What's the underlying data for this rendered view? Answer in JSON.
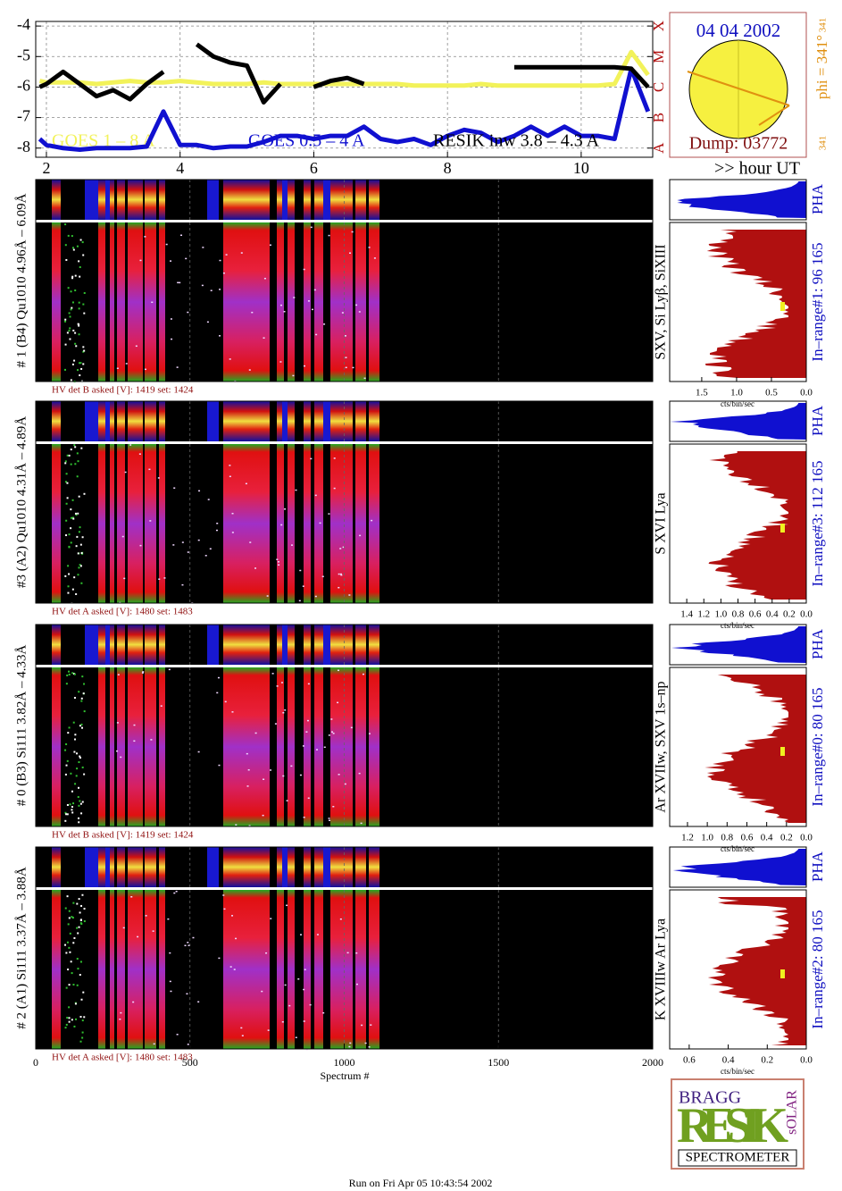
{
  "chart_data": [
    {
      "type": "line",
      "xlim": [
        1.84,
        11.07
      ],
      "xticks": [
        2,
        4,
        6,
        8,
        10
      ],
      "ylim": [
        -8.3,
        -3.85
      ],
      "yticks": [
        -4,
        -5,
        -6,
        -7,
        -8
      ],
      "y2lim": [
        -8.3,
        -3.85
      ],
      "y2ticks": [
        {
          "value": -8,
          "label": "A"
        },
        {
          "value": -7,
          "label": "B"
        },
        {
          "value": -6,
          "label": "C"
        },
        {
          "value": -5,
          "label": "M"
        },
        {
          "value": -4,
          "label": "X"
        }
      ],
      "grid": true,
      "xlabel": ">> hour UT",
      "x": [
        1.9,
        2.0,
        2.25,
        2.5,
        2.75,
        3.0,
        3.25,
        3.5,
        3.75,
        4.0,
        4.25,
        4.5,
        4.75,
        5.0,
        5.25,
        5.5,
        5.75,
        6.0,
        6.25,
        6.5,
        6.75,
        7.0,
        7.25,
        7.5,
        7.75,
        8.0,
        8.25,
        8.5,
        8.75,
        9.0,
        9.25,
        9.5,
        9.75,
        10.0,
        10.25,
        10.5,
        10.75,
        11.0
      ],
      "series": [
        {
          "name": "GOES 1 – 8 A",
          "color": "#f2f25a",
          "values": [
            -5.8,
            -5.85,
            -5.85,
            -5.85,
            -5.9,
            -5.85,
            -5.8,
            -5.85,
            -5.85,
            -5.8,
            -5.85,
            -5.9,
            -5.9,
            -5.9,
            -5.85,
            -5.9,
            -5.9,
            -5.9,
            -5.9,
            -5.9,
            -5.9,
            -5.9,
            -5.9,
            -5.95,
            -5.95,
            -5.95,
            -5.95,
            -5.9,
            -5.95,
            -5.95,
            -5.95,
            -5.95,
            -5.95,
            -5.95,
            -5.95,
            -5.9,
            -4.85,
            -5.6
          ]
        },
        {
          "name": "GOES 0.5 – 4 A",
          "color": "#1010d0",
          "values": [
            -7.7,
            -7.9,
            -8.0,
            -8.05,
            -8.0,
            -8.0,
            -8.0,
            -7.95,
            -6.8,
            -7.9,
            -7.9,
            -8.0,
            -7.95,
            -7.95,
            -7.8,
            -7.6,
            -7.6,
            -7.7,
            -7.6,
            -7.6,
            -7.3,
            -7.7,
            -7.8,
            -7.7,
            -7.9,
            -7.6,
            -7.4,
            -7.5,
            -7.8,
            -7.6,
            -7.3,
            -7.6,
            -7.3,
            -7.6,
            -7.6,
            -7.7,
            -5.4,
            -6.8
          ]
        },
        {
          "name": "RESIK inw 3.8 – 4.3 A",
          "color": "#000000",
          "values": [
            -6.0,
            -5.9,
            -5.5,
            -5.9,
            -6.3,
            -6.1,
            -6.4,
            -5.9,
            -5.5,
            null,
            -4.6,
            -5.0,
            -5.2,
            -5.3,
            -6.5,
            -5.9,
            null,
            -6.0,
            -5.8,
            -5.7,
            -5.9,
            null,
            null,
            null,
            null,
            null,
            null,
            null,
            null,
            -5.35,
            -5.35,
            -5.35,
            -5.35,
            -5.35,
            -5.35,
            -5.35,
            -5.4,
            -6.0
          ]
        }
      ]
    }
  ],
  "header": {
    "date": "04 04 2002",
    "dump": "Dump: 03772",
    "phi": "phi = 341°",
    "phi_top": "341",
    "phi_bottom": "341"
  },
  "spectrum_axis": {
    "xlim": [
      0,
      2000
    ],
    "xticks": [
      0,
      500,
      1000,
      1500,
      2000
    ],
    "xlabel": "Spectrum #"
  },
  "detectors": [
    {
      "label": "# 1 (B4) Qu1010 4.96Å – 6.09Å",
      "hv": "HV det B asked [V]:  1419 set:  1424",
      "lines": "SXV, Si Lyβ, SiXIII",
      "in_range": "In–range#1:   96 165",
      "pha": "PHA",
      "pha_xlim": [
        1.96,
        0
      ],
      "pha_ticks": [
        1.5,
        {
          "value": 1,
          "label": "1.0"
        },
        0.5,
        {
          "value": 0,
          "label": "0.0"
        }
      ],
      "unit": "cts/bin/sec"
    },
    {
      "label": "#3 (A2) Qu1010  4.31Å – 4.89Å",
      "hv": "HV det A asked [V]:  1480 set:  1483",
      "lines": "S XVI Lya",
      "in_range": "In–range#3:  112 165",
      "pha": "PHA",
      "pha_xlim": [
        1.6,
        0
      ],
      "pha_ticks": [
        1.4,
        1.2,
        {
          "value": 1,
          "label": "1.0"
        },
        0.8,
        0.6,
        0.4,
        0.2,
        {
          "value": 0,
          "label": "0.0"
        }
      ],
      "unit": "cts/bin/sec"
    },
    {
      "label": "# 0 (B3) Si111  3.82Å – 4.33Å",
      "hv": "HV det B asked [V]:  1419 set:  1424",
      "lines": "Ar XVIIw,  SXV 1s–np",
      "in_range": "In–range#0:   80 165",
      "pha": "PHA",
      "pha_xlim": [
        1.38,
        0
      ],
      "pha_ticks": [
        1.2,
        {
          "value": 1,
          "label": "1.0"
        },
        0.8,
        0.6,
        0.4,
        0.2,
        {
          "value": 0,
          "label": "0.0"
        }
      ],
      "unit": "cts/bin/sec"
    },
    {
      "label": "# 2 (A1) Si111  3.37Å – 3.88Å",
      "hv": "HV det A asked [V]:  1480 set:  1483",
      "lines": "K XVIIIw  Ar Lya",
      "in_range": "In–range#2:   80 165",
      "pha": "PHA",
      "pha_xlim": [
        0.7,
        0
      ],
      "pha_ticks": [
        0.6,
        0.4,
        0.2,
        {
          "value": 0,
          "label": "0.0"
        }
      ],
      "unit": "cts/bin/sec"
    }
  ],
  "logo": {
    "bragg": "BRAGG",
    "resik": "RESIK",
    "solar": "sOLAR",
    "spectrometer": "SPECTROMETER"
  },
  "footer": "Run on Fri Apr 05 10:43:54 2002"
}
